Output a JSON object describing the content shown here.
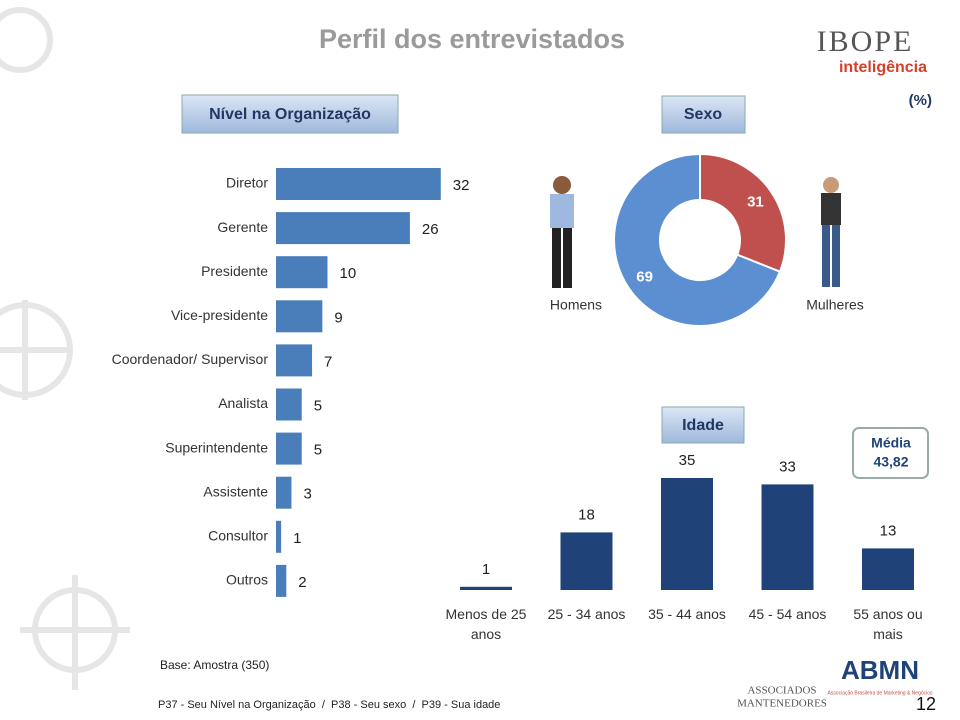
{
  "title": "Perfil dos entrevistados",
  "unit_note": "(%)",
  "logo": {
    "brand": "IBOPE",
    "sub": "inteligência"
  },
  "chart_data": [
    {
      "type": "hbar",
      "title": "Nível na Organização",
      "categories": [
        "Diretor",
        "Gerente",
        "Presidente",
        "Vice-presidente",
        "Coordenador/ Supervisor",
        "Analista",
        "Superintendente",
        "Assistente",
        "Consultor",
        "Outros"
      ],
      "values": [
        32,
        26,
        10,
        9,
        7,
        5,
        5,
        3,
        1,
        2
      ],
      "color": "#4a7ebb"
    },
    {
      "type": "donut",
      "title": "Sexo",
      "categories": [
        "Homens",
        "Mulheres"
      ],
      "values": [
        69,
        31
      ],
      "colors": [
        "#5b8fd2",
        "#c0504d"
      ]
    },
    {
      "type": "bar",
      "title": "Idade",
      "categories": [
        "Menos de 25 anos",
        "25 - 34 anos",
        "35 - 44 anos",
        "45 - 54 anos",
        "55 anos ou mais"
      ],
      "values": [
        1,
        18,
        35,
        33,
        13
      ],
      "color": "#1f4378",
      "annotation": {
        "label": "Média",
        "value": "43,82"
      }
    }
  ],
  "base_note": "Base: Amostra (350)",
  "footer": "P37 - Seu Nível na Organização  /  P38 - Seu sexo  /  P39 - Sua idade",
  "partners": {
    "left": [
      "ASSOCIADOS",
      "MANTENEDORES"
    ],
    "right": "ABMN",
    "right_sub": "Associação Brasileira de Marketing & Negócios"
  },
  "page_number": "12"
}
